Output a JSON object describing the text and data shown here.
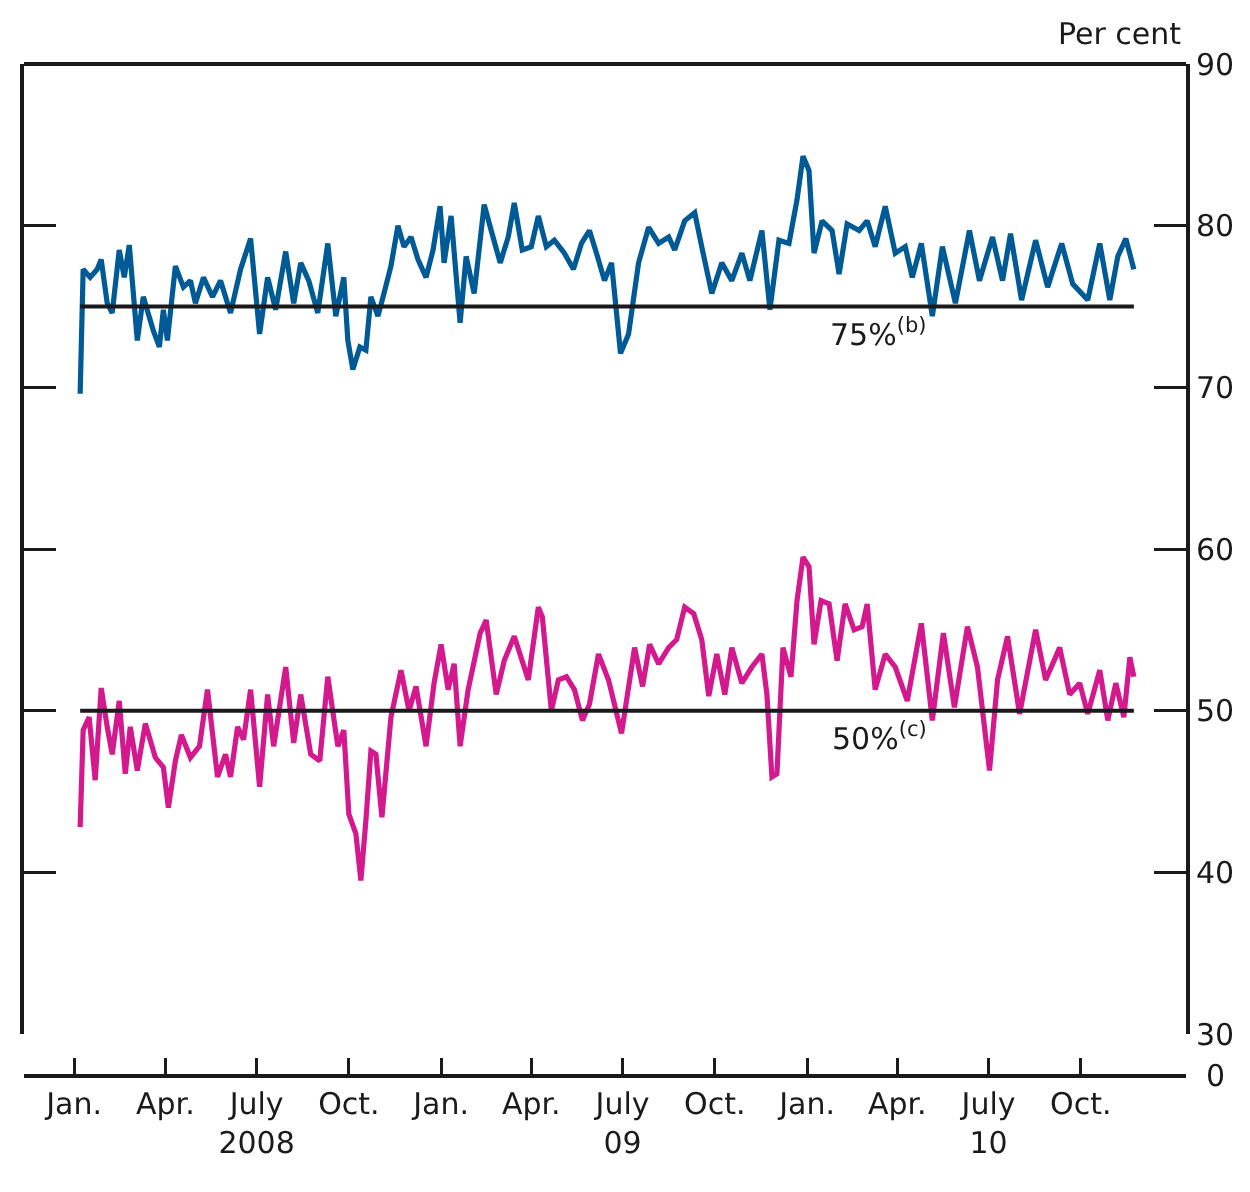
{
  "chart_data": {
    "type": "line",
    "ylabel": "Per cent",
    "xlim": [
      "2007-11-12",
      "2011-01-14"
    ],
    "ylim": [
      30,
      90
    ],
    "yticks": [
      30,
      40,
      50,
      60,
      70,
      80,
      90
    ],
    "xticks": [
      {
        "value": "2008-01-01",
        "label": "Jan."
      },
      {
        "value": "2008-04-01",
        "label": "Apr."
      },
      {
        "value": "2008-07-01",
        "label": "July\n2008"
      },
      {
        "value": "2008-10-01",
        "label": "Oct."
      },
      {
        "value": "2009-01-01",
        "label": "Jan."
      },
      {
        "value": "2009-04-01",
        "label": "Apr."
      },
      {
        "value": "2009-07-01",
        "label": "July\n09"
      },
      {
        "value": "2009-10-01",
        "label": "Oct."
      },
      {
        "value": "2010-01-01",
        "label": "Jan."
      },
      {
        "value": "2010-04-01",
        "label": "Apr."
      },
      {
        "value": "2010-07-01",
        "label": "July\n10"
      },
      {
        "value": "2010-10-01",
        "label": "Oct."
      }
    ],
    "grid": false,
    "marker": "none",
    "line_style": "solid",
    "annotations": [
      "0"
    ],
    "ref_lines": [
      {
        "axis": "y",
        "value": 75,
        "label": "75%$^{(b)}$",
        "color": "#1a1a1a"
      },
      {
        "axis": "y",
        "value": 50,
        "label": "50%$^{(c)}$",
        "color": "#1a1a1a"
      }
    ],
    "series": [
      {
        "color": "#005a96",
        "x": [
          "2008-01-07",
          "2008-01-10",
          "2008-01-17",
          "2008-01-24",
          "2008-01-28",
          "2008-02-03",
          "2008-02-08",
          "2008-02-15",
          "2008-02-20",
          "2008-02-25",
          "2008-03-04",
          "2008-03-10",
          "2008-03-20",
          "2008-03-26",
          "2008-03-30",
          "2008-04-03",
          "2008-04-11",
          "2008-04-19",
          "2008-04-26",
          "2008-05-01",
          "2008-05-09",
          "2008-05-18",
          "2008-05-26",
          "2008-06-05",
          "2008-06-15",
          "2008-06-25",
          "2008-07-04",
          "2008-07-12",
          "2008-07-20",
          "2008-07-30",
          "2008-08-07",
          "2008-08-14",
          "2008-08-22",
          "2008-08-31",
          "2008-09-10",
          "2008-09-18",
          "2008-09-26",
          "2008-09-30",
          "2008-10-05",
          "2008-10-12",
          "2008-10-18",
          "2008-10-23",
          "2008-10-30",
          "2008-11-05",
          "2008-11-12",
          "2008-11-19",
          "2008-11-25",
          "2008-12-02",
          "2008-12-09",
          "2008-12-17",
          "2008-12-24",
          "2008-12-31",
          "2009-01-04",
          "2009-01-11",
          "2009-01-20",
          "2009-01-26",
          "2009-02-03",
          "2009-02-13",
          "2009-02-20",
          "2009-03-01",
          "2009-03-09",
          "2009-03-15",
          "2009-03-23",
          "2009-04-01",
          "2009-04-08",
          "2009-04-16",
          "2009-04-24",
          "2009-05-04",
          "2009-05-13",
          "2009-05-21",
          "2009-05-29",
          "2009-06-05",
          "2009-06-13",
          "2009-06-20",
          "2009-06-29",
          "2009-07-07",
          "2009-07-17",
          "2009-07-27",
          "2009-08-06",
          "2009-08-16",
          "2009-08-22",
          "2009-09-01",
          "2009-09-11",
          "2009-09-18",
          "2009-09-28",
          "2009-10-08",
          "2009-10-18",
          "2009-10-28",
          "2009-11-05",
          "2009-11-17",
          "2009-11-25",
          "2009-12-04",
          "2009-12-14",
          "2009-12-22",
          "2009-12-28",
          "2010-01-03",
          "2010-01-08",
          "2010-01-16",
          "2010-01-26",
          "2010-02-02",
          "2010-02-10",
          "2010-02-22",
          "2010-03-02",
          "2010-03-10",
          "2010-03-20",
          "2010-03-30",
          "2010-04-09",
          "2010-04-16",
          "2010-04-25",
          "2010-05-06",
          "2010-05-16",
          "2010-05-29",
          "2010-06-12",
          "2010-06-22",
          "2010-07-05",
          "2010-07-15",
          "2010-07-23",
          "2010-08-03",
          "2010-08-17",
          "2010-08-29",
          "2010-09-12",
          "2010-09-23",
          "2010-10-08",
          "2010-10-20",
          "2010-10-30",
          "2010-11-07",
          "2010-11-15",
          "2010-11-23"
        ],
        "values": [
          69.6,
          77.3,
          76.8,
          77.3,
          77.9,
          75.2,
          74.6,
          78.5,
          76.8,
          78.8,
          72.9,
          75.6,
          73.5,
          72.5,
          74.8,
          72.9,
          77.5,
          76.2,
          76.6,
          75.2,
          76.8,
          75.6,
          76.6,
          74.6,
          77.3,
          79.2,
          73.3,
          76.8,
          74.8,
          78.4,
          75.2,
          77.7,
          76.6,
          74.6,
          78.9,
          74.4,
          76.8,
          72.9,
          71.1,
          72.5,
          72.3,
          75.6,
          74.4,
          75.8,
          77.5,
          80.0,
          78.7,
          79.3,
          77.9,
          76.8,
          78.5,
          81.2,
          77.7,
          80.6,
          74.0,
          78.1,
          75.8,
          81.3,
          79.7,
          77.7,
          79.3,
          81.4,
          78.5,
          78.7,
          80.6,
          78.7,
          79.1,
          78.3,
          77.3,
          78.9,
          79.7,
          78.3,
          76.6,
          77.7,
          72.1,
          73.3,
          77.7,
          79.9,
          78.9,
          79.3,
          78.5,
          80.3,
          80.8,
          78.7,
          75.8,
          77.7,
          76.6,
          78.3,
          76.6,
          79.7,
          74.8,
          79.1,
          78.9,
          81.6,
          84.3,
          83.4,
          78.3,
          80.3,
          79.7,
          77.0,
          80.1,
          79.7,
          80.3,
          78.7,
          81.2,
          78.3,
          78.7,
          76.8,
          78.9,
          74.4,
          78.7,
          75.2,
          79.7,
          76.6,
          79.3,
          76.6,
          79.5,
          75.4,
          79.1,
          76.2,
          78.9,
          76.4,
          75.4,
          78.9,
          75.4,
          78.1,
          79.2,
          77.3
        ]
      },
      {
        "color": "#d4198f",
        "x": [
          "2008-01-07",
          "2008-01-10",
          "2008-01-16",
          "2008-01-22",
          "2008-01-28",
          "2008-02-03",
          "2008-02-08",
          "2008-02-15",
          "2008-02-21",
          "2008-02-26",
          "2008-03-04",
          "2008-03-12",
          "2008-03-22",
          "2008-03-30",
          "2008-04-04",
          "2008-04-11",
          "2008-04-17",
          "2008-04-26",
          "2008-05-05",
          "2008-05-13",
          "2008-05-23",
          "2008-05-31",
          "2008-06-05",
          "2008-06-12",
          "2008-06-18",
          "2008-06-25",
          "2008-07-04",
          "2008-07-12",
          "2008-07-18",
          "2008-07-30",
          "2008-08-07",
          "2008-08-14",
          "2008-08-24",
          "2008-09-02",
          "2008-09-10",
          "2008-09-20",
          "2008-09-26",
          "2008-10-01",
          "2008-10-08",
          "2008-10-13",
          "2008-10-18",
          "2008-10-23",
          "2008-10-28",
          "2008-11-03",
          "2008-11-12",
          "2008-11-22",
          "2008-11-30",
          "2008-12-07",
          "2008-12-17",
          "2008-12-25",
          "2009-01-01",
          "2009-01-08",
          "2009-01-14",
          "2009-01-20",
          "2009-01-28",
          "2009-02-09",
          "2009-02-15",
          "2009-02-25",
          "2009-03-05",
          "2009-03-15",
          "2009-03-29",
          "2009-04-08",
          "2009-04-12",
          "2009-04-21",
          "2009-04-28",
          "2009-05-06",
          "2009-05-14",
          "2009-05-22",
          "2009-05-29",
          "2009-06-07",
          "2009-06-17",
          "2009-06-30",
          "2009-07-13",
          "2009-07-21",
          "2009-07-28",
          "2009-08-06",
          "2009-08-16",
          "2009-08-24",
          "2009-09-01",
          "2009-09-10",
          "2009-09-18",
          "2009-09-25",
          "2009-10-03",
          "2009-10-11",
          "2009-10-18",
          "2009-10-28",
          "2009-11-07",
          "2009-11-17",
          "2009-11-22",
          "2009-11-27",
          "2009-12-02",
          "2009-12-08",
          "2009-12-16",
          "2009-12-22",
          "2009-12-28",
          "2010-01-03",
          "2010-01-08",
          "2010-01-15",
          "2010-01-23",
          "2010-01-31",
          "2010-02-08",
          "2010-02-17",
          "2010-02-25",
          "2010-03-02",
          "2010-03-10",
          "2010-03-20",
          "2010-03-30",
          "2010-04-11",
          "2010-04-25",
          "2010-05-06",
          "2010-05-17",
          "2010-05-28",
          "2010-06-10",
          "2010-06-20",
          "2010-07-02",
          "2010-07-10",
          "2010-07-20",
          "2010-08-01",
          "2010-08-17",
          "2010-08-27",
          "2010-09-10",
          "2010-09-20",
          "2010-09-30",
          "2010-10-08",
          "2010-10-20",
          "2010-10-28",
          "2010-11-05",
          "2010-11-13",
          "2010-11-19",
          "2010-11-23"
        ],
        "values": [
          42.8,
          48.8,
          49.6,
          45.7,
          51.4,
          49.0,
          47.3,
          50.6,
          46.1,
          49.0,
          46.3,
          49.2,
          47.1,
          46.5,
          44.0,
          46.9,
          48.5,
          47.1,
          47.8,
          51.3,
          45.9,
          47.3,
          45.9,
          49.0,
          48.2,
          51.3,
          45.3,
          51.0,
          47.8,
          52.7,
          48.0,
          51.0,
          47.3,
          46.9,
          52.1,
          47.8,
          48.8,
          43.6,
          42.4,
          39.5,
          43.2,
          47.5,
          47.3,
          43.4,
          49.6,
          52.5,
          50.0,
          51.5,
          47.8,
          51.7,
          54.1,
          51.3,
          52.9,
          47.8,
          51.3,
          54.8,
          55.6,
          51.0,
          53.1,
          54.6,
          51.9,
          56.4,
          55.8,
          50.0,
          51.9,
          52.1,
          51.3,
          49.4,
          50.4,
          53.5,
          51.9,
          48.6,
          53.9,
          51.5,
          54.1,
          52.9,
          53.9,
          54.4,
          56.4,
          56.0,
          54.4,
          50.9,
          53.5,
          51.0,
          53.9,
          51.7,
          52.7,
          53.5,
          51.0,
          45.9,
          46.1,
          53.9,
          52.1,
          56.8,
          59.5,
          58.9,
          54.1,
          56.8,
          56.6,
          53.1,
          56.6,
          55.0,
          55.2,
          56.6,
          51.3,
          53.5,
          52.7,
          50.6,
          55.4,
          49.4,
          54.8,
          50.2,
          55.2,
          52.7,
          46.3,
          51.9,
          54.6,
          49.8,
          55.0,
          51.9,
          53.9,
          51.0,
          51.7,
          49.8,
          52.5,
          49.4,
          51.7,
          49.6,
          53.3,
          52.1
        ]
      }
    ]
  }
}
